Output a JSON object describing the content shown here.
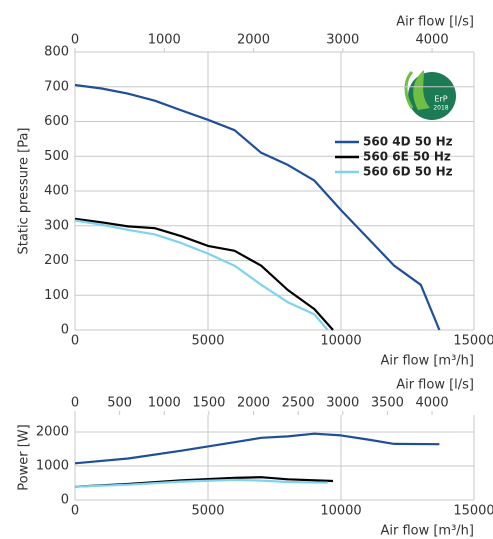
{
  "chart_data": [
    {
      "type": "line",
      "ylabel": "Static pressure [Pa]",
      "xlabel": "Air flow [m³/h]",
      "x2label": "Air flow [l/s]",
      "xlim": [
        0,
        15000
      ],
      "xticks": [
        0,
        5000,
        10000,
        15000
      ],
      "x2lim": [
        0,
        4470
      ],
      "x2ticks": [
        0,
        1000,
        2000,
        3000,
        4000
      ],
      "ylim": [
        0,
        800
      ],
      "yticks": [
        0,
        100,
        200,
        300,
        400,
        500,
        600,
        700,
        800
      ],
      "grid": true,
      "legend": "upper right",
      "annotations": [
        "ErP",
        "2018"
      ],
      "series": [
        {
          "name": "560 4D 50 Hz",
          "color": "#1f4f9a",
          "x": [
            0,
            1000,
            2000,
            3000,
            4000,
            5000,
            6000,
            7000,
            8000,
            9000,
            10000,
            11000,
            12000,
            13000,
            13700
          ],
          "values": [
            705,
            695,
            680,
            660,
            632,
            605,
            575,
            510,
            475,
            430,
            345,
            265,
            185,
            130,
            0
          ]
        },
        {
          "name": "560 6E 50 Hz",
          "color": "#000000",
          "x": [
            0,
            1000,
            2000,
            3000,
            4000,
            5000,
            6000,
            7000,
            8000,
            9000,
            9700
          ],
          "values": [
            320,
            310,
            298,
            293,
            270,
            242,
            228,
            185,
            115,
            60,
            0
          ]
        },
        {
          "name": "560 6D 50 Hz",
          "color": "#7fd3f0",
          "x": [
            0,
            1000,
            2000,
            3000,
            4000,
            5000,
            6000,
            7000,
            8000,
            9000,
            9500
          ],
          "values": [
            315,
            303,
            288,
            275,
            250,
            220,
            185,
            130,
            80,
            45,
            0
          ]
        }
      ]
    },
    {
      "type": "line",
      "ylabel": "Power [W]",
      "xlabel": "Air flow [m³/h]",
      "x2label": "Air flow [l/s]",
      "xlim": [
        0,
        15000
      ],
      "xticks": [
        0,
        5000,
        10000,
        15000
      ],
      "x2lim": [
        0,
        4470
      ],
      "x2ticks": [
        0,
        500,
        1000,
        1500,
        2000,
        2500,
        3000,
        3500,
        4000
      ],
      "ylim": [
        0,
        2500
      ],
      "yticks": [
        0,
        1000,
        2000
      ],
      "grid": true,
      "series": [
        {
          "color": "#1f4f9a",
          "x": [
            0,
            2000,
            4000,
            6000,
            7000,
            8000,
            9000,
            10000,
            11000,
            12000,
            13700
          ],
          "values": [
            1080,
            1220,
            1450,
            1700,
            1830,
            1870,
            1950,
            1900,
            1780,
            1650,
            1640
          ]
        },
        {
          "color": "#000000",
          "x": [
            0,
            2000,
            4000,
            6000,
            7000,
            8000,
            9700
          ],
          "values": [
            390,
            470,
            580,
            650,
            670,
            610,
            560
          ]
        },
        {
          "color": "#7fd3f0",
          "x": [
            0,
            2000,
            4000,
            6000,
            7000,
            8000,
            9500
          ],
          "values": [
            390,
            450,
            540,
            590,
            570,
            530,
            510
          ]
        }
      ]
    }
  ]
}
